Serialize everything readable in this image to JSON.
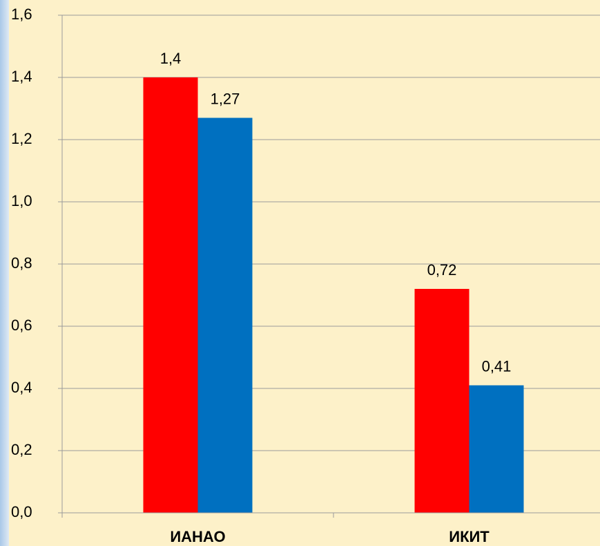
{
  "chart_data": {
    "type": "bar",
    "categories": [
      "ИАНАО",
      "ИКИТ"
    ],
    "series": [
      {
        "color": "#ff0000",
        "values": [
          1.4,
          0.72
        ],
        "value_labels": [
          "1,4",
          "0,72"
        ]
      },
      {
        "color": "#0070c0",
        "values": [
          1.27,
          0.41
        ],
        "value_labels": [
          "1,27",
          "0,41"
        ]
      }
    ],
    "ylim": [
      0,
      1.6
    ],
    "yticks": [
      {
        "value": 0,
        "label": "0,0"
      },
      {
        "value": 0.2,
        "label": "0,2"
      },
      {
        "value": 0.4,
        "label": "0,4"
      },
      {
        "value": 0.6,
        "label": "0,6"
      },
      {
        "value": 0.8,
        "label": "0,8"
      },
      {
        "value": 1.0,
        "label": "1,0"
      },
      {
        "value": 1.2,
        "label": "1,2"
      },
      {
        "value": 1.4,
        "label": "1,4"
      },
      {
        "value": 1.6,
        "label": "1,6"
      }
    ],
    "grid": true
  }
}
